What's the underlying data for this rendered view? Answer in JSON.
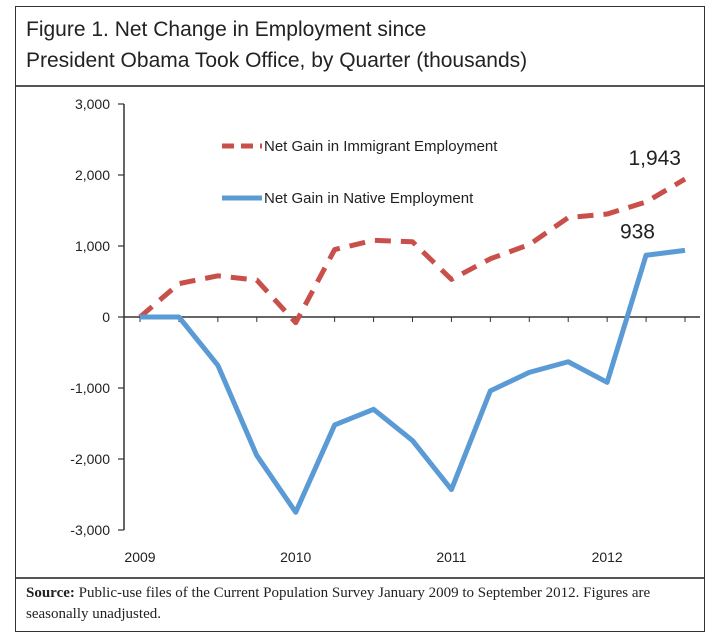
{
  "title": {
    "line1": "Figure 1. Net Change in Employment since",
    "line2": "President Obama Took Office, by Quarter (thousands)"
  },
  "source": {
    "label": "Source:",
    "text": " Public-use files of the Current Population Survey January 2009 to September 2012. Figures are seasonally unadjusted."
  },
  "chart_data": {
    "type": "line",
    "title": "Figure 1. Net Change in Employment since President Obama Took Office, by Quarter (thousands)",
    "ylim": [
      -3000,
      3000
    ],
    "yticks": [
      3000,
      2000,
      1000,
      0,
      -1000,
      -2000,
      -3000
    ],
    "ytick_labels": [
      "3,000",
      "2,000",
      "1,000",
      "0",
      "-1,000",
      "-2,000",
      "-3,000"
    ],
    "xlim": [
      2009,
      2012.75
    ],
    "xticks": [
      2009,
      2010,
      2011,
      2012
    ],
    "xtick_labels": [
      "2009",
      "2010",
      "2011",
      "2012"
    ],
    "grid": false,
    "legend_position": "top-left",
    "series": [
      {
        "name": "Net Gain in Immigrant Employment",
        "color": "#c9504a",
        "style": "dashed",
        "x": [
          2009,
          2009.25,
          2009.5,
          2009.75,
          2010,
          2010.25,
          2010.5,
          2010.75,
          2011,
          2011.25,
          2011.5,
          2011.75,
          2012,
          2012.25,
          2012.5
        ],
        "values": [
          0,
          470,
          580,
          520,
          -80,
          950,
          1080,
          1060,
          530,
          820,
          1020,
          1400,
          1450,
          1620,
          1943
        ],
        "end_label": "1,943"
      },
      {
        "name": "Net Gain in Native Employment",
        "color": "#5b9bd5",
        "style": "solid",
        "x": [
          2009,
          2009.25,
          2009.5,
          2009.75,
          2010,
          2010.25,
          2010.5,
          2010.75,
          2011,
          2011.25,
          2011.5,
          2011.75,
          2012,
          2012.25,
          2012.5
        ],
        "values": [
          0,
          0,
          -680,
          -1950,
          -2750,
          -1520,
          -1300,
          -1740,
          -2430,
          -1040,
          -780,
          -630,
          -920,
          870,
          938
        ],
        "end_label": "938"
      }
    ]
  }
}
